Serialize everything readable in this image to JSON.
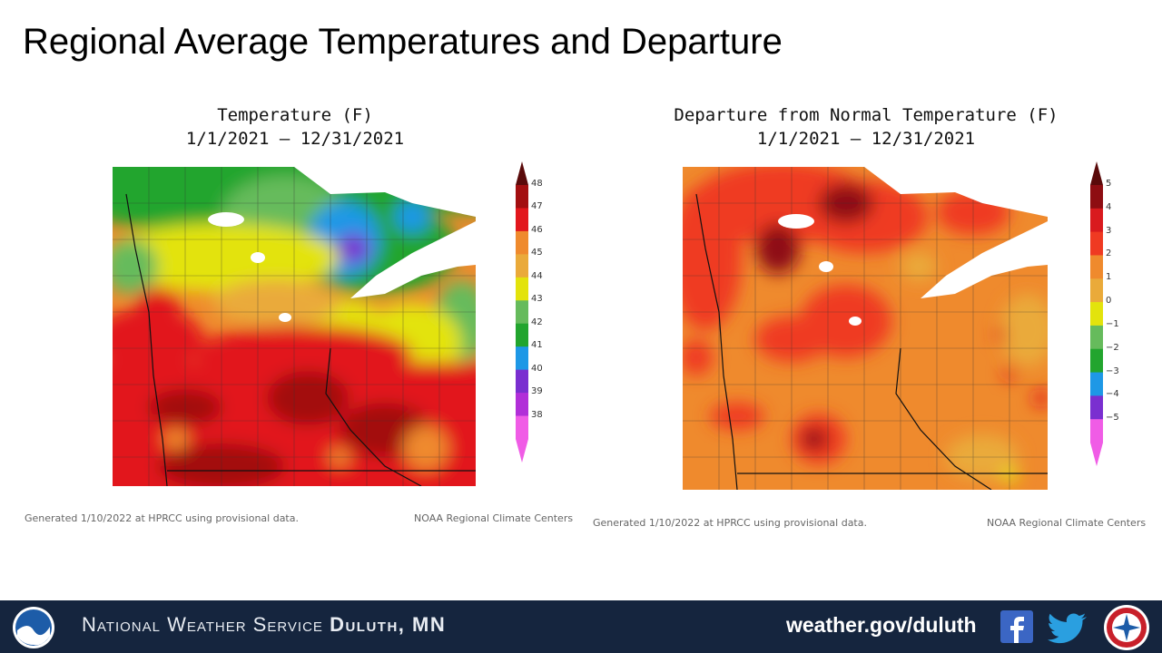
{
  "slide": {
    "title": "Regional Average Temperatures and Departure"
  },
  "panels": [
    {
      "title_line1": "Temperature (F)",
      "title_line2": "1/1/2021 – 12/31/2021",
      "legend_labels": [
        "48",
        "47",
        "46",
        "45",
        "44",
        "43",
        "42",
        "41",
        "40",
        "39",
        "38"
      ],
      "legend_colors": [
        "#a30f10",
        "#e2171c",
        "#ef8a2d",
        "#eaaa3a",
        "#e3e30c",
        "#66bb5c",
        "#22a52e",
        "#1e98e6",
        "#7a2fd0",
        "#b12fd8",
        "#f05ce6"
      ],
      "footnote_left": "Generated 1/10/2022 at HPRCC using provisional data.",
      "footnote_right": "NOAA Regional Climate Centers"
    },
    {
      "title_line1": "Departure from Normal Temperature (F)",
      "title_line2": "1/1/2021 – 12/31/2021",
      "legend_labels": [
        "5",
        "4",
        "3",
        "2",
        "1",
        "0",
        "−1",
        "−2",
        "−3",
        "−4",
        "−5"
      ],
      "legend_colors": [
        "#8e0d12",
        "#d91a1e",
        "#ef3a22",
        "#ef8a2d",
        "#eaaa3a",
        "#e3e30c",
        "#66bb5c",
        "#22a52e",
        "#1e98e6",
        "#7a2fd0",
        "#f05ce6"
      ],
      "footnote_left": "Generated 1/10/2022 at HPRCC using provisional data.",
      "footnote_right": "NOAA Regional Climate Centers"
    }
  ],
  "footer": {
    "agency": "National Weather Service",
    "office": "Duluth, MN",
    "url": "weather.gov/duluth",
    "icons": [
      "noaa-logo-icon",
      "facebook-icon",
      "twitter-icon",
      "nws-logo-icon"
    ]
  }
}
